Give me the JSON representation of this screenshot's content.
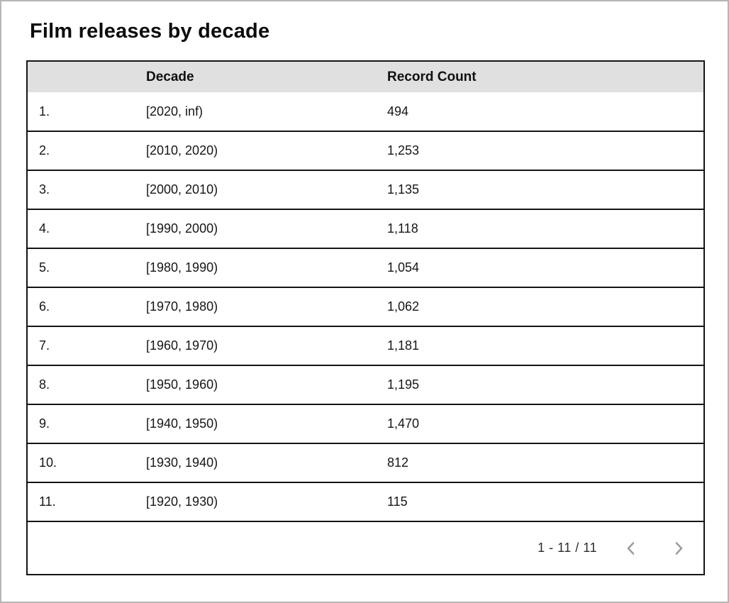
{
  "page": {
    "title": "Film releases by decade"
  },
  "table": {
    "columns": [
      {
        "label": ""
      },
      {
        "label": "Decade"
      },
      {
        "label": "Record Count"
      }
    ],
    "rows": [
      {
        "index": "1.",
        "decade": "[2020, inf)",
        "count": "494"
      },
      {
        "index": "2.",
        "decade": "[2010, 2020)",
        "count": "1,253"
      },
      {
        "index": "3.",
        "decade": "[2000, 2010)",
        "count": "1,135"
      },
      {
        "index": "4.",
        "decade": "[1990, 2000)",
        "count": "1,118"
      },
      {
        "index": "5.",
        "decade": "[1980, 1990)",
        "count": "1,054"
      },
      {
        "index": "6.",
        "decade": "[1970, 1980)",
        "count": "1,062"
      },
      {
        "index": "7.",
        "decade": "[1960, 1970)",
        "count": "1,181"
      },
      {
        "index": "8.",
        "decade": "[1950, 1960)",
        "count": "1,195"
      },
      {
        "index": "9.",
        "decade": "[1940, 1950)",
        "count": "1,470"
      },
      {
        "index": "10.",
        "decade": "[1930, 1940)",
        "count": "812"
      },
      {
        "index": "11.",
        "decade": "[1920, 1930)",
        "count": "115"
      }
    ],
    "pagination": {
      "label": "1 - 11 / 11",
      "prev_icon": "chevron-left",
      "next_icon": "chevron-right"
    }
  },
  "colors": {
    "header_bg": "#e0e0e0",
    "table_border": "#141414",
    "chevron": "#9e9e9e",
    "text": "#161616",
    "outer_border": "#b6b6b6"
  },
  "chart_data": {
    "type": "table",
    "title": "Film releases by decade",
    "columns": [
      "Decade",
      "Record Count"
    ],
    "categories": [
      "[2020, inf)",
      "[2010, 2020)",
      "[2000, 2010)",
      "[1990, 2000)",
      "[1980, 1990)",
      "[1970, 1980)",
      "[1960, 1970)",
      "[1950, 1960)",
      "[1940, 1950)",
      "[1930, 1940)",
      "[1920, 1930)"
    ],
    "values": [
      494,
      1253,
      1135,
      1118,
      1054,
      1062,
      1181,
      1195,
      1470,
      812,
      115
    ],
    "pagination": "1 - 11 / 11"
  }
}
